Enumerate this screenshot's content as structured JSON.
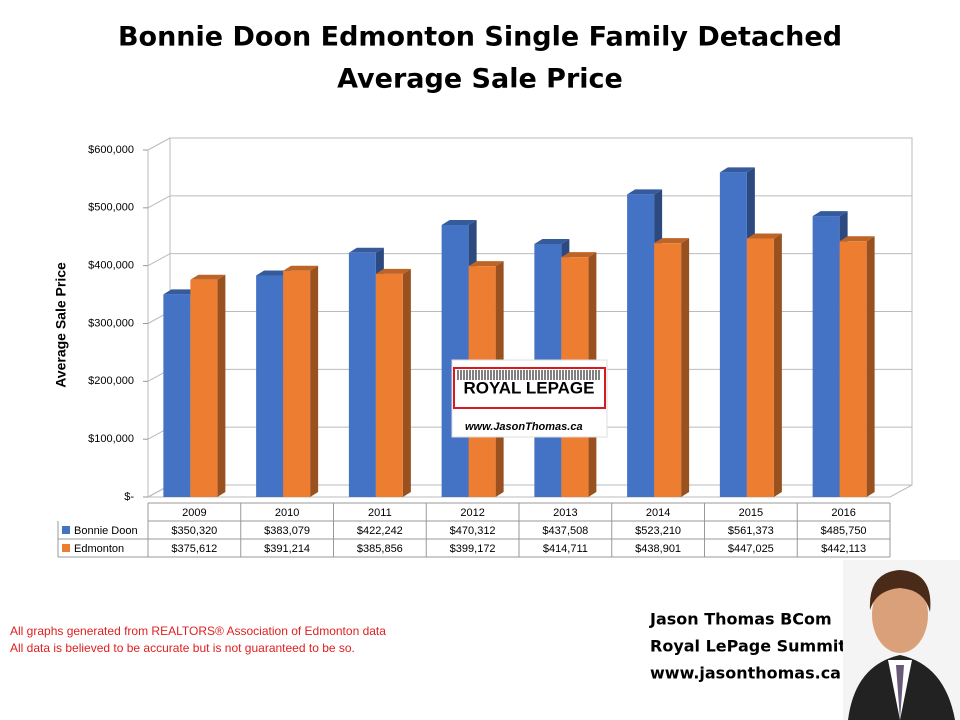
{
  "chart_data": {
    "type": "bar3d",
    "title": [
      "Bonnie Doon Edmonton Single Family Detached",
      "Average Sale Price"
    ],
    "y_label": "Average Sale Price",
    "categories": [
      "2009",
      "2010",
      "2011",
      "2012",
      "2013",
      "2014",
      "2015",
      "2016"
    ],
    "series": [
      {
        "name": "Bonnie Doon",
        "color": "#4472c4",
        "values": [
          350320,
          383079,
          422242,
          470312,
          437508,
          523210,
          561373,
          485750
        ],
        "value_labels": [
          "$350,320",
          "$383,079",
          "$422,242",
          "$470,312",
          "$437,508",
          "$523,210",
          "$561,373",
          "$485,750"
        ]
      },
      {
        "name": "Edmonton",
        "color": "#ed7d31",
        "values": [
          375612,
          391214,
          385856,
          399172,
          414711,
          438901,
          447025,
          442113
        ],
        "value_labels": [
          "$375,612",
          "$391,214",
          "$385,856",
          "$399,172",
          "$414,711",
          "$438,901",
          "$447,025",
          "$442,113"
        ]
      }
    ],
    "ylim": [
      0,
      600000
    ],
    "yticks": [
      {
        "value": 0,
        "label": "$-"
      },
      {
        "value": 100000,
        "label": "$100,000"
      },
      {
        "value": 200000,
        "label": "$200,000"
      },
      {
        "value": 300000,
        "label": "$300,000"
      },
      {
        "value": 400000,
        "label": "$400,000"
      },
      {
        "value": 500000,
        "label": "$500,000"
      },
      {
        "value": 600000,
        "label": "$600,000"
      }
    ],
    "grid": true
  },
  "logo": {
    "brand": "ROYAL LEPAGE",
    "url": "www.JasonThomas.ca"
  },
  "notes": [
    "All graphs generated from REALTORS® Association of Edmonton data",
    "All data is believed to be accurate but is not guaranteed to be so."
  ],
  "signature": [
    "Jason Thomas BCom",
    "Royal LePage Summit",
    "www.jasonthomas.ca"
  ]
}
